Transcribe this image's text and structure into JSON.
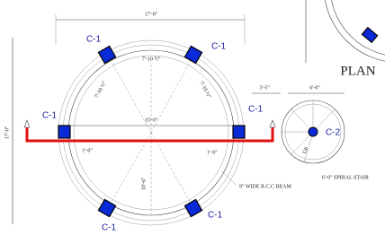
{
  "plan_title": "PLAN",
  "dimensions": {
    "top_width": "17'-0\"",
    "left_height": "17'-0\"",
    "radius_left": "7'-10 ½\"",
    "radius_top": "7'-10 ½\"",
    "radius_right": "7'-10 ½\"",
    "diameter": "15'-0\"",
    "offset_left": "1'-0\"",
    "offset_right": "1'-0\"",
    "bottom": "10'-6\"",
    "gap": "3'-5\"",
    "stair_width": "6'-0\""
  },
  "columns": [
    "C-1",
    "C-1",
    "C-1",
    "C-1",
    "C-1",
    "C-1",
    "C-2"
  ],
  "notes": {
    "beam": "9\" WIDE R.C.C BEAM",
    "stair": "6'-0\" SPIRAL STAIR",
    "up": "UP"
  }
}
